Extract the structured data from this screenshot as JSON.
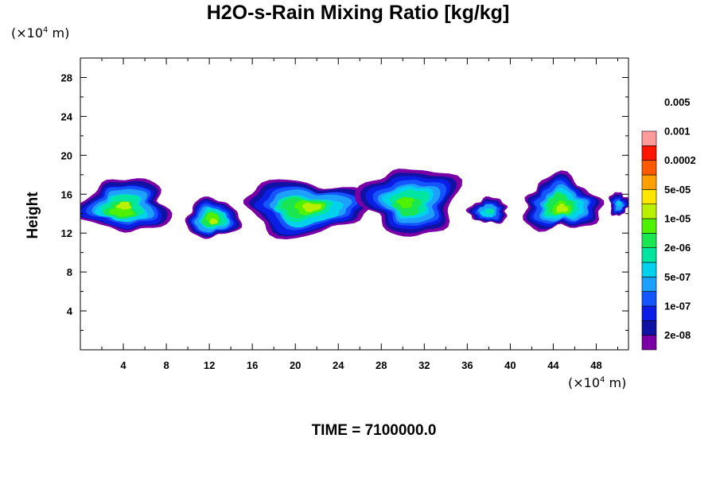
{
  "title": "H2O-s-Rain Mixing Ratio [kg/kg]",
  "unit_label": "(×10",
  "unit_exp": "4",
  "unit_suffix": " m)",
  "time_label": "TIME = 7100000.0",
  "chart_data": {
    "type": "heatmap",
    "title": "H2O-s-Rain Mixing Ratio [kg/kg]",
    "xlabel": "(×10^4 m)",
    "ylabel": "Height",
    "xlim": [
      0,
      51
    ],
    "ylim": [
      0,
      30
    ],
    "x_ticks": [
      4,
      8,
      12,
      16,
      20,
      24,
      28,
      32,
      36,
      40,
      44,
      48
    ],
    "y_ticks": [
      4,
      8,
      12,
      16,
      20,
      24,
      28
    ],
    "grid": false,
    "colorbar": {
      "colors": [
        "#7a00a6",
        "#0f12a2",
        "#0a1ee6",
        "#1455ff",
        "#1ea0ff",
        "#00d2ee",
        "#00e6a0",
        "#19e650",
        "#4ff000",
        "#b9f000",
        "#ffe600",
        "#ffa000",
        "#ff5a00",
        "#ff1400",
        "#ff9a9a"
      ],
      "tick_labels": [
        "2e-08",
        "1e-07",
        "5e-07",
        "2e-06",
        "1e-05",
        "5e-05",
        "0.0002",
        "0.001",
        "0.005"
      ]
    },
    "regions": [
      {
        "x_range": [
          0,
          8.3
        ],
        "y_range": [
          12.1,
          17.5
        ],
        "max_level": 9
      },
      {
        "x_range": [
          9.8,
          14.8
        ],
        "y_range": [
          11.5,
          15.5
        ],
        "max_level": 9
      },
      {
        "x_range": [
          15.2,
          26.8
        ],
        "y_range": [
          11.9,
          17.4
        ],
        "max_level": 9
      },
      {
        "x_range": [
          26.3,
          35.2
        ],
        "y_range": [
          11.9,
          18.8
        ],
        "max_level": 8
      },
      {
        "x_range": [
          36.2,
          39.8
        ],
        "y_range": [
          13.0,
          15.6
        ],
        "max_level": 6
      },
      {
        "x_range": [
          41.2,
          48.3
        ],
        "y_range": [
          12.2,
          17.7
        ],
        "max_level": 9
      },
      {
        "x_range": [
          49.2,
          51
        ],
        "y_range": [
          13.8,
          16.2
        ],
        "max_level": 5
      }
    ]
  }
}
